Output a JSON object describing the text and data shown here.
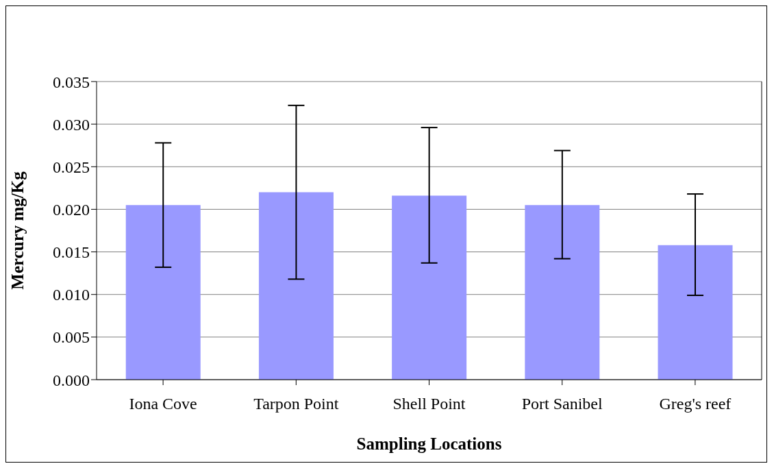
{
  "chart_data": {
    "type": "bar",
    "xlabel": "Sampling Locations",
    "ylabel": "Mercury mg/Kg",
    "categories": [
      "Iona Cove",
      "Tarpon Point",
      "Shell Point",
      "Port Sanibel",
      "Greg's reef"
    ],
    "values": [
      0.0205,
      0.022,
      0.0216,
      0.0205,
      0.0158
    ],
    "errors": [
      [
        0.0132,
        0.0278
      ],
      [
        0.0118,
        0.0322
      ],
      [
        0.0137,
        0.0296
      ],
      [
        0.0142,
        0.0269
      ],
      [
        0.0099,
        0.0218
      ]
    ],
    "color": "#9999ff",
    "ylim": [
      0,
      0.035
    ],
    "yticks": [
      {
        "value": 0,
        "label": "0.000"
      },
      {
        "value": 0.005,
        "label": "0.005"
      },
      {
        "value": 0.01,
        "label": "0.010"
      },
      {
        "value": 0.015,
        "label": "0.015"
      },
      {
        "value": 0.02,
        "label": "0.020"
      },
      {
        "value": 0.025,
        "label": "0.025"
      },
      {
        "value": 0.03,
        "label": "0.030"
      },
      {
        "value": 0.035,
        "label": "0.035"
      }
    ],
    "grid": "y",
    "legend": false
  }
}
